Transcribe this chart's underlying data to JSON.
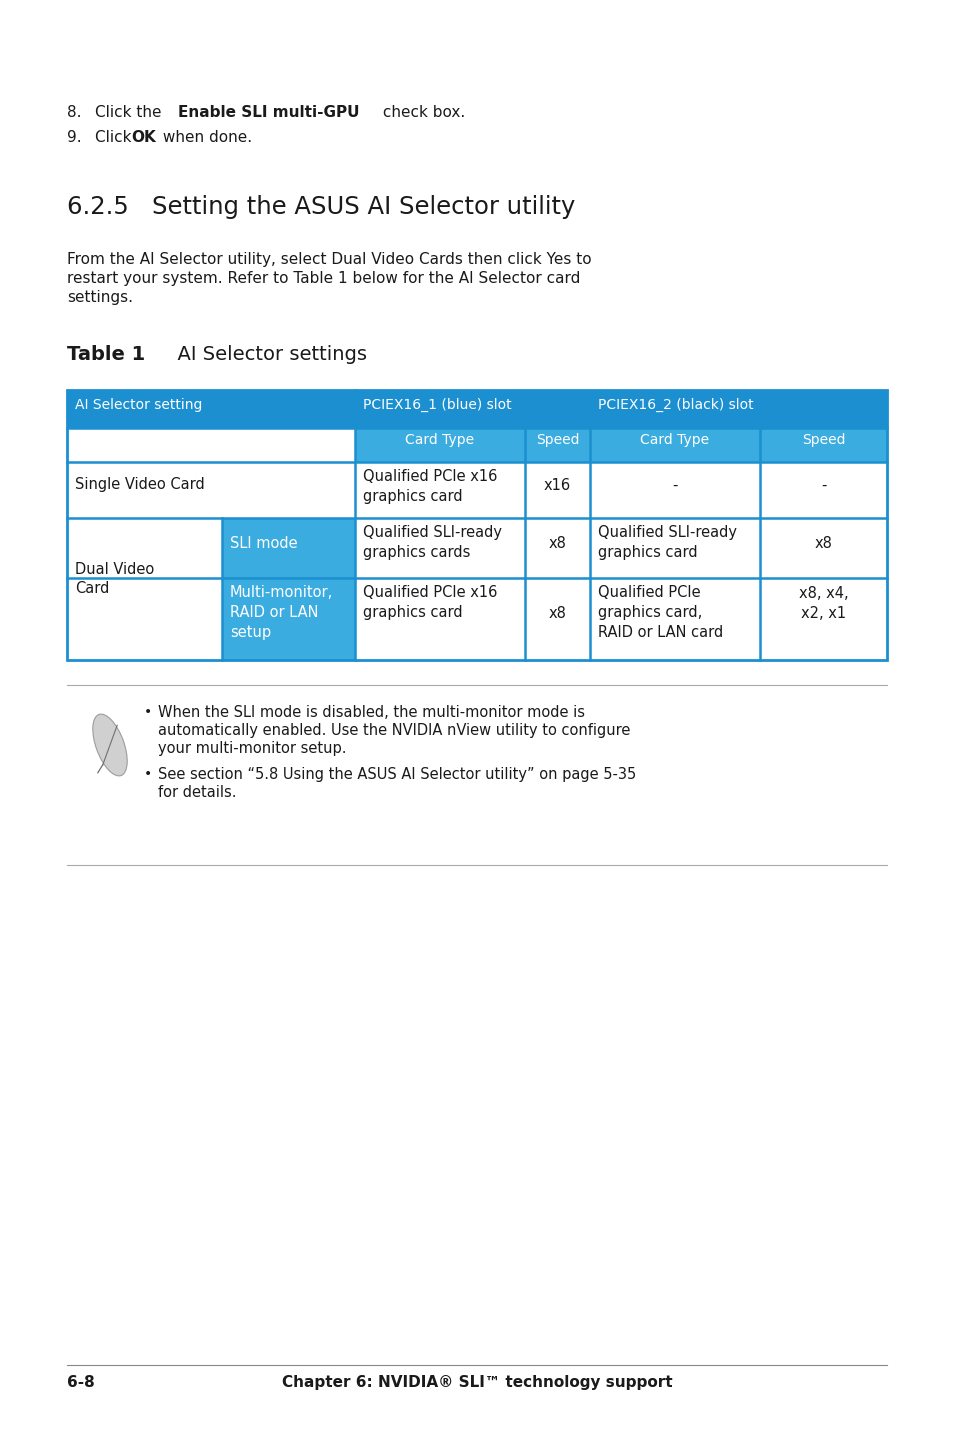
{
  "bg_color": "#ffffff",
  "header_bg": "#1b8fd0",
  "header2_bg": "#3aace0",
  "white": "#ffffff",
  "text_color": "#1a1a1a",
  "section_title": "6.2.5   Setting the ASUS AI Selector utility",
  "intro_line1": "From the AI Selector utility, select Dual Video Cards then click Yes to",
  "intro_line2": "restart your system. Refer to Table 1 below for the AI Selector card",
  "intro_line3": "settings.",
  "table_title_bold": "Table 1",
  "table_title_normal": "      AI Selector settings",
  "col_header_ai": "AI Selector setting",
  "col_header_blue": "PCIEX16_1 (blue) slot",
  "col_header_black": "PCIEX16_2 (black) slot",
  "col_header_ct": "Card Type",
  "col_header_spd": "Speed",
  "row_svc_label": "Single Video Card",
  "row_svc_ct1": "Qualified PCIe x16\ngraphics card",
  "row_svc_spd1": "x16",
  "row_svc_ct2": "-",
  "row_svc_spd2": "-",
  "row_dual_label": "Dual Video\nCard",
  "row_sli_label": "SLI mode",
  "row_sli_ct1": "Qualified SLI-ready\ngraphics cards",
  "row_sli_spd1": "x8",
  "row_sli_ct2": "Qualified SLI-ready\ngraphics card",
  "row_sli_spd2": "x8",
  "row_mm_label": "Multi-monitor,\nRAID or LAN\nsetup",
  "row_mm_ct1": "Qualified PCIe x16\ngraphics card",
  "row_mm_spd1": "x8",
  "row_mm_ct2": "Qualified PCIe\ngraphics card,\nRAID or LAN card",
  "row_mm_spd2": "x8, x4,\nx2, x1",
  "note1_line1": "When the SLI mode is disabled, the multi-monitor mode is",
  "note1_line2": "automatically enabled. Use the NVIDIA nView utility to configure",
  "note1_line3": "your multi-monitor setup.",
  "note2_line1": "See section “5.8 Using the ASUS AI Selector utility” on page 5-35",
  "note2_line2": "for details.",
  "footer_left": "6-8",
  "footer_right": "Chapter 6: NVIDIA® SLI™ technology support",
  "t_l": 67,
  "t_r": 887,
  "c0": 67,
  "c1": 222,
  "c2": 355,
  "c3": 525,
  "c4": 590,
  "c5": 760,
  "c6": 887,
  "r0": 390,
  "r1": 428,
  "r2": 462,
  "r3": 518,
  "r4": 578,
  "r5": 660
}
